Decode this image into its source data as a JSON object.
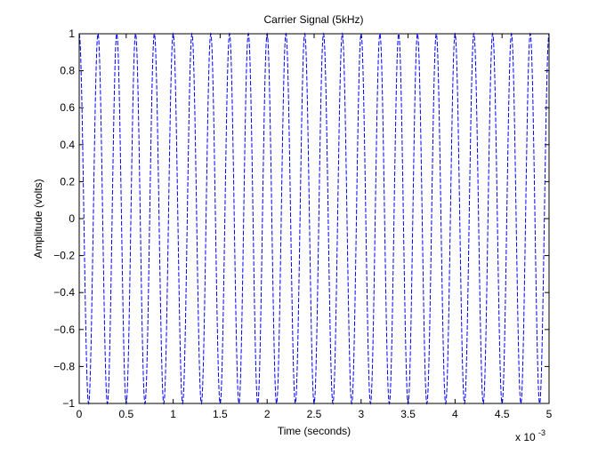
{
  "chart_data": {
    "type": "line",
    "title": "Carrier Signal (5kHz)",
    "xlabel": "Time (seconds)",
    "ylabel": "Amplitude (volts)",
    "x_multiplier_label": "x 10",
    "x_multiplier_exponent": "-3",
    "xlim": [
      0,
      5
    ],
    "ylim": [
      -1,
      1
    ],
    "x_ticks": [
      "0",
      "0.5",
      "1",
      "1.5",
      "2",
      "2.5",
      "3",
      "3.5",
      "4",
      "4.5",
      "5"
    ],
    "y_ticks": [
      "1",
      "0.8",
      "0.6",
      "0.4",
      "0.2",
      "0",
      "−0.2",
      "−0.4",
      "−0.6",
      "−0.8",
      "−1"
    ],
    "grid": false,
    "series": [
      {
        "function": "cos",
        "amplitude": 1,
        "frequency_hz": 5000,
        "x_units": "ms",
        "x_range": [
          0,
          5
        ],
        "sample_count": 1500,
        "color": "#0000ff",
        "line_style": "dashed"
      }
    ]
  }
}
